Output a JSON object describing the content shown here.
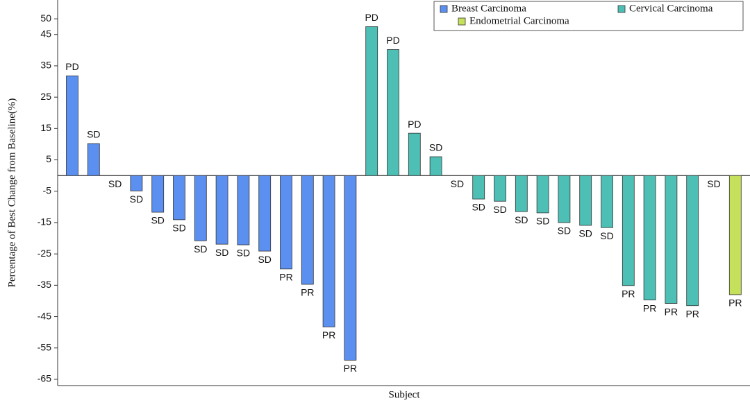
{
  "chart_data": {
    "type": "bar",
    "ylabel": "Percentage of Best Change from Baseline(%)",
    "xlabel": "Subject",
    "ylim": [
      -67,
      56
    ],
    "yticks": [
      50,
      45,
      35,
      25,
      15,
      5,
      -5,
      -15,
      -25,
      -35,
      -45,
      -55,
      -65
    ],
    "legend": "upper right",
    "series": [
      {
        "name": "Breast Carcinoma",
        "color": "#5b8ff0",
        "values": [
          31.8,
          10.2,
          0,
          -4.9,
          -11.7,
          -14.1,
          -20.8,
          -21.9,
          -22.1,
          -24.1,
          -29.8,
          -34.7,
          -48.3,
          -58.9,
          null,
          null,
          null,
          null,
          null,
          null,
          null,
          null,
          null,
          null,
          null,
          null,
          null,
          null,
          null,
          null,
          null,
          null
        ],
        "value_labels": [
          "PD",
          "SD",
          "SD",
          "SD",
          "SD",
          "SD",
          "SD",
          "SD",
          "SD",
          "SD",
          "PR",
          "PR",
          "PR",
          "PR",
          null,
          null,
          null,
          null,
          null,
          null,
          null,
          null,
          null,
          null,
          null,
          null,
          null,
          null,
          null,
          null,
          null,
          null
        ]
      },
      {
        "name": "Cervical Carcinoma",
        "color": "#4dbfb5",
        "values": [
          null,
          null,
          null,
          null,
          null,
          null,
          null,
          null,
          null,
          null,
          null,
          null,
          null,
          null,
          47.5,
          40.2,
          13.5,
          6.0,
          0,
          -7.5,
          -8.2,
          -11.5,
          -11.9,
          -15.0,
          -15.9,
          -16.6,
          -35.1,
          -39.7,
          -40.8,
          -41.5,
          0,
          null
        ],
        "value_labels": [
          null,
          null,
          null,
          null,
          null,
          null,
          null,
          null,
          null,
          null,
          null,
          null,
          null,
          null,
          "PD",
          "PD",
          "PD",
          "SD",
          "SD",
          "SD",
          "SD",
          "SD",
          "SD",
          "SD",
          "SD",
          "SD",
          "PR",
          "PR",
          "PR",
          "PR",
          "SD",
          null
        ]
      },
      {
        "name": "Endometrial Carcinoma",
        "color": "#c5e05a",
        "values": [
          null,
          null,
          null,
          null,
          null,
          null,
          null,
          null,
          null,
          null,
          null,
          null,
          null,
          null,
          null,
          null,
          null,
          null,
          null,
          null,
          null,
          null,
          null,
          null,
          null,
          null,
          null,
          null,
          null,
          null,
          null,
          -38.0
        ],
        "value_labels": [
          null,
          null,
          null,
          null,
          null,
          null,
          null,
          null,
          null,
          null,
          null,
          null,
          null,
          null,
          null,
          null,
          null,
          null,
          null,
          null,
          null,
          null,
          null,
          null,
          null,
          null,
          null,
          null,
          null,
          null,
          null,
          "PR"
        ]
      }
    ]
  }
}
